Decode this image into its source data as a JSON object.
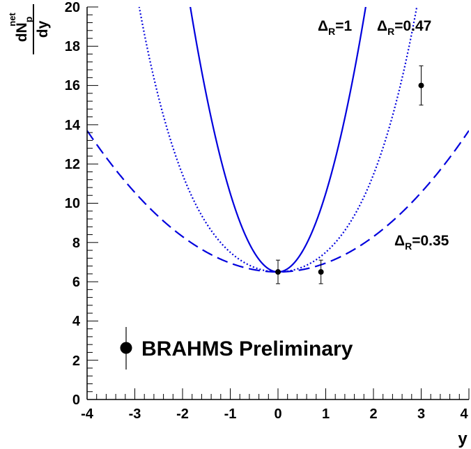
{
  "chart_data": {
    "type": "scatter",
    "title": "",
    "xlabel": "y",
    "ylabel": {
      "main": "dN",
      "sub": "p",
      "sup": "net",
      "denominator": "dy"
    },
    "xlim": [
      -4,
      4
    ],
    "ylim": [
      0,
      20
    ],
    "x_ticks": [
      "-4",
      "-3",
      "-2",
      "-1",
      "0",
      "1",
      "2",
      "3",
      "4"
    ],
    "y_ticks": [
      "0",
      "2",
      "4",
      "6",
      "8",
      "10",
      "12",
      "14",
      "16",
      "18",
      "20"
    ],
    "grid": false,
    "data_points": {
      "name": "BRAHMS Preliminary",
      "color": "#000000",
      "points": [
        {
          "x": 0.0,
          "y": 6.5,
          "err": 0.6
        },
        {
          "x": 0.9,
          "y": 6.5,
          "err": 0.6
        },
        {
          "x": 3.0,
          "y": 16.0,
          "err": 1.0
        }
      ]
    },
    "curves": [
      {
        "annotation": {
          "delta": "Δ",
          "sub": "R",
          "value": "=1"
        },
        "style": "solid",
        "color": "#0000dd",
        "a": 6.5,
        "b": 4.0
      },
      {
        "annotation": {
          "delta": "Δ",
          "sub": "R",
          "value": "=0.47"
        },
        "style": "dotted",
        "color": "#0000dd",
        "a": 6.5,
        "b": 0.92,
        "c": 0.08
      },
      {
        "annotation": {
          "delta": "Δ",
          "sub": "R",
          "value": "=0.35"
        },
        "style": "dashed",
        "color": "#0000dd",
        "a": 6.5,
        "b": 0.45
      }
    ],
    "legend": {
      "label": "BRAHMS Preliminary",
      "placement": "bottom-left"
    }
  }
}
